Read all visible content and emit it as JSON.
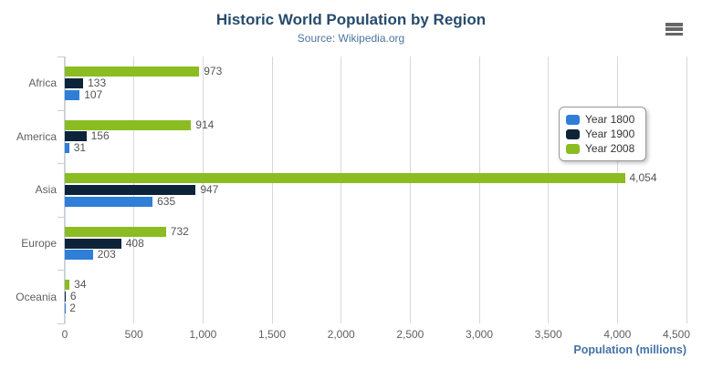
{
  "header": {
    "title": "Historic World Population by Region",
    "subtitle": "Source: Wikipedia.org"
  },
  "export_menu": {
    "icon": "hamburger-icon"
  },
  "colors": {
    "title": "#274b6d",
    "subtitle": "#4d759e",
    "axis_title": "#4572a7",
    "tick_labels": "#606060",
    "data_labels": "#555555",
    "gridline": "#d8d8d8",
    "category_axis_line": "#c0d0e0",
    "legend_border": "#999999",
    "legend_text": "#333333",
    "menu_icon": "#666666",
    "series_year_1800": "#2f7ed8",
    "series_year_1900": "#0d233a",
    "series_year_2008": "#8bbc21"
  },
  "chart_data": {
    "type": "bar",
    "title": "Historic World Population by Region",
    "subtitle": "Source: Wikipedia.org",
    "categories": [
      "Africa",
      "America",
      "Asia",
      "Europe",
      "Oceania"
    ],
    "series": [
      {
        "name": "Year 1800",
        "color": "#2f7ed8",
        "values": [
          107,
          31,
          635,
          203,
          2
        ]
      },
      {
        "name": "Year 1900",
        "color": "#0d233a",
        "values": [
          133,
          156,
          947,
          408,
          6
        ]
      },
      {
        "name": "Year 2008",
        "color": "#8bbc21",
        "values": [
          973,
          914,
          4054,
          732,
          34
        ]
      }
    ],
    "bar_order_top_to_bottom": [
      "Year 2008",
      "Year 1900",
      "Year 1800"
    ],
    "data_labels_shown": true,
    "xlabel": "Population (millions)",
    "xlim": [
      0,
      4500
    ],
    "xticks": [
      0,
      500,
      1000,
      1500,
      2000,
      2500,
      3000,
      3500,
      4000,
      4500
    ],
    "grid": true,
    "legend_position": "right",
    "legend_items": [
      "Year 1800",
      "Year 1900",
      "Year 2008"
    ]
  }
}
